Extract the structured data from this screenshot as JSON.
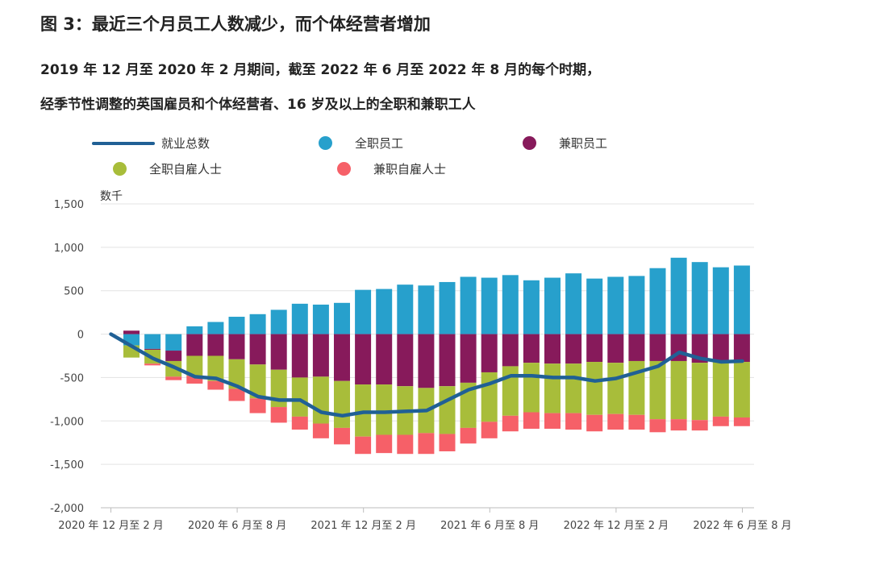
{
  "title": "图 3：最近三个月员工人数减少，而个体经营者增加",
  "subtitle_line1": "2019 年 12 月至 2020 年 2 月期间，截至 2022 年 6 月至 2022 年 8 月的每个时期，",
  "subtitle_line2": "经季节性调整的英国雇员和个体经营者、16 岁及以上的全职和兼职工人",
  "legend": {
    "total": "就业总数",
    "ft_emp": "全职员工",
    "pt_emp": "兼职员工",
    "ft_self": "全职自雇人士",
    "pt_self": "兼职自雇人士"
  },
  "colors": {
    "total": "#206095",
    "ft_emp": "#27a0cc",
    "pt_emp": "#871a5b",
    "ft_self": "#a8bd3a",
    "pt_self": "#f66068"
  },
  "chart_data": {
    "type": "bar",
    "stacked": true,
    "ylabel": "数千",
    "ylim": [
      -2000,
      1500
    ],
    "yticks": [
      1500,
      1000,
      500,
      0,
      -500,
      -1000,
      -1500,
      -2000
    ],
    "ytick_labels": [
      "1,500",
      "1,000",
      "500",
      "0",
      "-500",
      "-1,000",
      "-1,500",
      "-2,000"
    ],
    "xtick_labels": [
      "2020 年 12 月至 2 月",
      "2020 年 6 月至 8 月",
      "2021 年 12 月至 2 月",
      "2021 年 6 月至 8 月",
      "2022 年 12 月至 2 月",
      "2022 年 6 月至 8 月"
    ],
    "xtick_index": [
      0,
      6,
      12,
      18,
      24,
      30
    ],
    "grid": true,
    "series": [
      {
        "name": "全职员工",
        "key": "ft_emp",
        "values": [
          -130,
          -170,
          -190,
          90,
          140,
          200,
          230,
          280,
          350,
          340,
          360,
          510,
          520,
          570,
          560,
          600,
          660,
          650,
          680,
          620,
          650,
          700,
          640,
          660,
          670,
          760,
          880,
          830,
          770,
          790
        ]
      },
      {
        "name": "兼职员工",
        "key": "pt_emp",
        "values": [
          40,
          -10,
          -120,
          -250,
          -250,
          -290,
          -350,
          -410,
          -500,
          -490,
          -540,
          -580,
          -580,
          -600,
          -620,
          -600,
          -560,
          -440,
          -370,
          -330,
          -340,
          -340,
          -320,
          -330,
          -310,
          -310,
          -310,
          -330,
          -320,
          -320
        ]
      },
      {
        "name": "全职自雇人士",
        "key": "ft_self",
        "values": [
          -140,
          -160,
          -180,
          -230,
          -290,
          -340,
          -390,
          -430,
          -450,
          -540,
          -540,
          -600,
          -580,
          -560,
          -520,
          -550,
          -520,
          -570,
          -570,
          -570,
          -570,
          -570,
          -610,
          -590,
          -620,
          -670,
          -670,
          -660,
          -630,
          -640
        ]
      },
      {
        "name": "兼职自雇人士",
        "key": "pt_self",
        "values": [
          0,
          -20,
          -40,
          -90,
          -100,
          -140,
          -170,
          -180,
          -150,
          -170,
          -190,
          -200,
          -210,
          -220,
          -240,
          -200,
          -180,
          -190,
          -180,
          -190,
          -180,
          -190,
          -190,
          -180,
          -170,
          -150,
          -130,
          -120,
          -110,
          -100
        ]
      },
      {
        "name": "就业总数",
        "key": "total",
        "type": "line",
        "values": [
          0,
          -140,
          -280,
          -380,
          -490,
          -510,
          -600,
          -720,
          -760,
          -760,
          -900,
          -940,
          -900,
          -900,
          -890,
          -880,
          -760,
          -640,
          -570,
          -480,
          -480,
          -500,
          -500,
          -540,
          -510,
          -440,
          -370,
          -210,
          -280,
          -320,
          -310
        ]
      }
    ]
  }
}
